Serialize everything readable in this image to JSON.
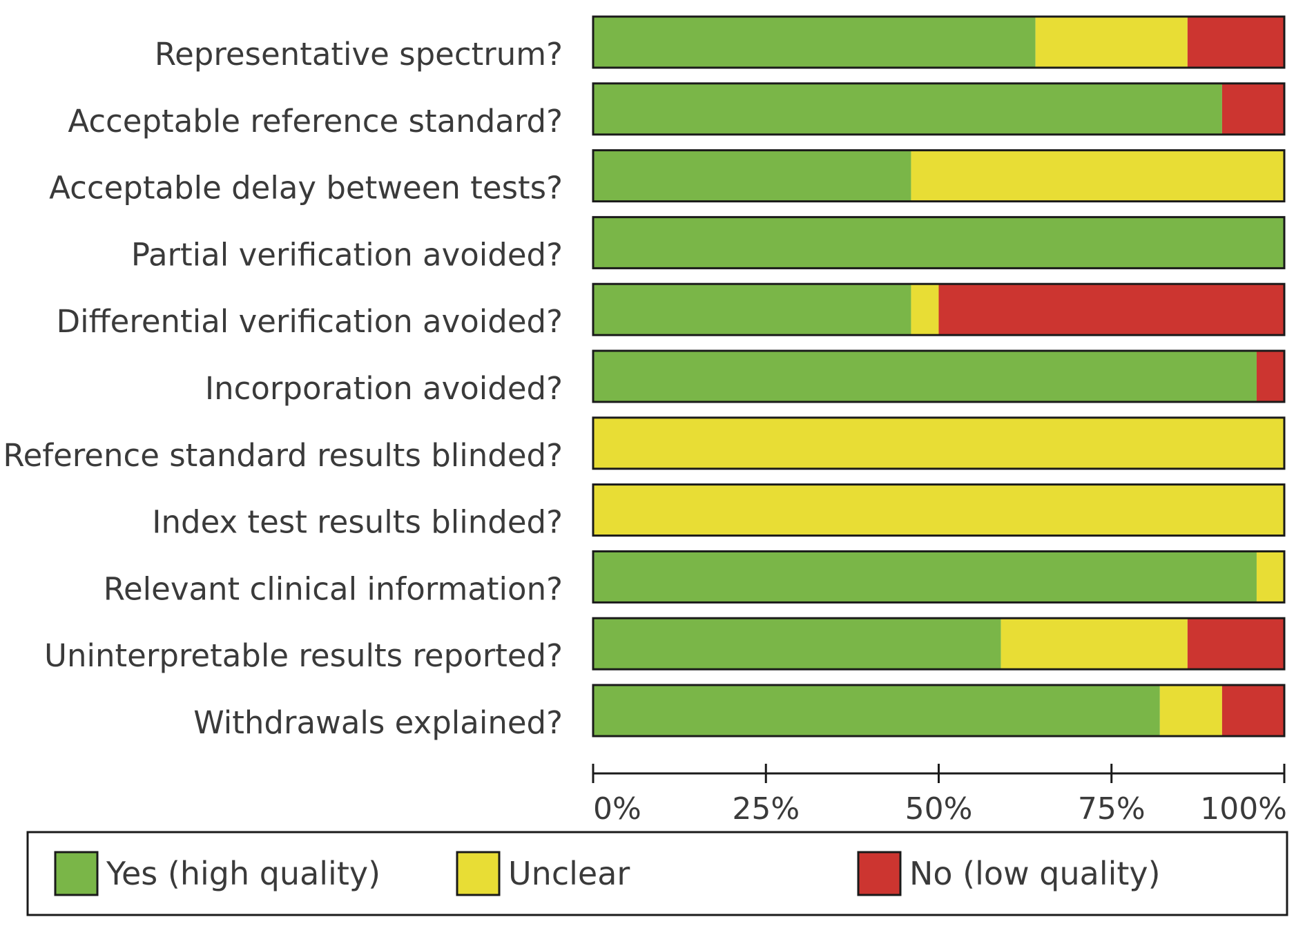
{
  "chart_data": {
    "type": "bar",
    "orientation": "horizontal",
    "stacked": true,
    "percent_stacked": true,
    "categories": [
      "Representative spectrum?",
      "Acceptable reference standard?",
      "Acceptable delay between tests?",
      "Partial verification avoided?",
      "Differential verification avoided?",
      "Incorporation avoided?",
      "Reference standard results blinded?",
      "Index test results blinded?",
      "Relevant clinical information?",
      "Uninterpretable results reported?",
      "Withdrawals explained?"
    ],
    "series": [
      {
        "name": "Yes (high quality)",
        "color": "#7ab648",
        "values": [
          64,
          91,
          46,
          100,
          46,
          96,
          0,
          0,
          96,
          59,
          82
        ]
      },
      {
        "name": "Unclear",
        "color": "#e8dd35",
        "values": [
          22,
          0,
          54,
          0,
          4,
          0,
          100,
          100,
          4,
          27,
          9
        ]
      },
      {
        "name": "No (low quality)",
        "color": "#cc3530",
        "values": [
          14,
          9,
          0,
          0,
          50,
          4,
          0,
          0,
          0,
          14,
          9
        ]
      }
    ],
    "xlim": [
      0,
      100
    ],
    "xticks": [
      "0%",
      "25%",
      "50%",
      "75%",
      "100%"
    ],
    "xlabel": "",
    "ylabel": "",
    "title": "",
    "grid": false,
    "legend_position": "bottom"
  }
}
